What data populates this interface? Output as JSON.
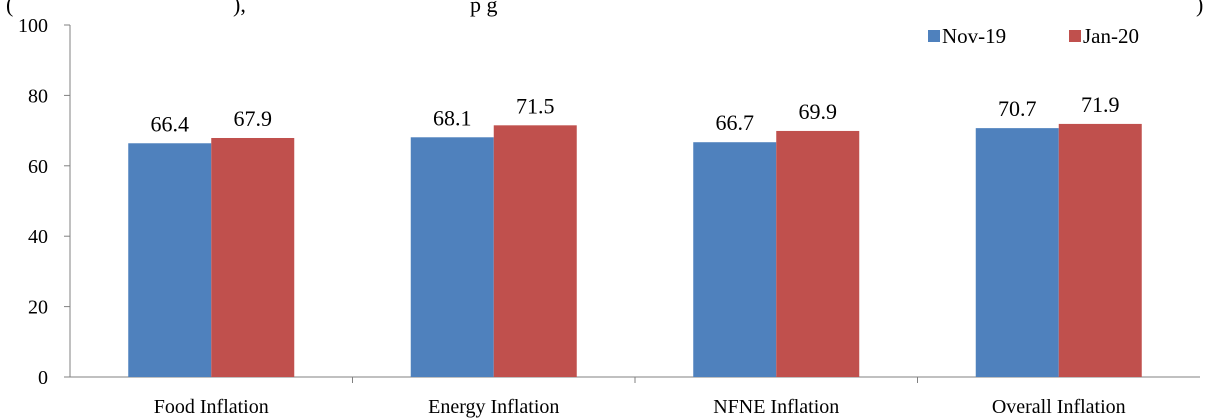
{
  "header": {
    "partial_text_left": "(",
    "partial_text_mid": "),",
    "partial_text_right": "p         g",
    "partial_text_end": ")"
  },
  "chart_data": {
    "type": "bar",
    "categories": [
      "Food Inflation",
      "Energy Inflation",
      "NFNE Inflation",
      "Overall Inflation"
    ],
    "series": [
      {
        "name": "Nov-19",
        "values": [
          66.4,
          68.1,
          66.7,
          70.7
        ]
      },
      {
        "name": "Jan-20",
        "values": [
          67.9,
          71.5,
          69.9,
          71.9
        ]
      }
    ],
    "title": "",
    "xlabel": "",
    "ylabel": "",
    "ylim": [
      0,
      100
    ],
    "yticks": [
      0,
      20,
      40,
      60,
      80,
      100
    ],
    "grid": false,
    "legend_position": "top-right",
    "colors": [
      "#4F81BD",
      "#C0504D"
    ],
    "data_labels": true
  }
}
